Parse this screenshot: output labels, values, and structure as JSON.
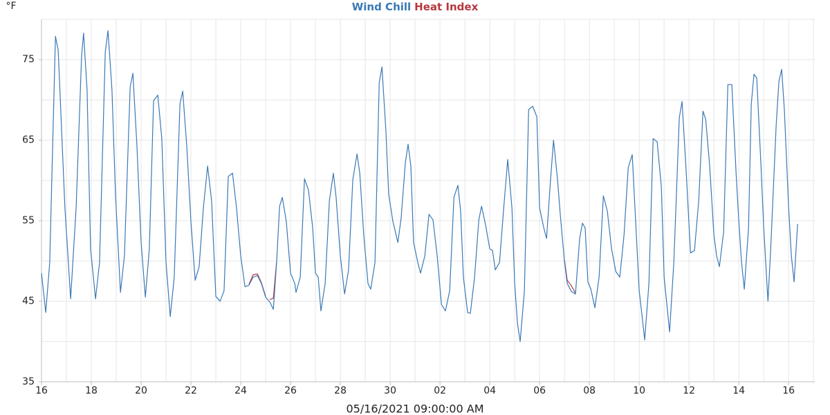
{
  "chart_data": {
    "type": "line",
    "y_label": "°F",
    "x_label": "05/16/2021 09:00:00 AM",
    "xlim": [
      0,
      31.05
    ],
    "ylim": [
      35,
      80
    ],
    "xticks": [
      {
        "value": 0,
        "label": "16"
      },
      {
        "value": 2,
        "label": "18"
      },
      {
        "value": 4,
        "label": "20"
      },
      {
        "value": 6,
        "label": "22"
      },
      {
        "value": 8,
        "label": "24"
      },
      {
        "value": 10,
        "label": "26"
      },
      {
        "value": 12,
        "label": "28"
      },
      {
        "value": 14,
        "label": "30"
      },
      {
        "value": 16,
        "label": "02"
      },
      {
        "value": 18,
        "label": "04"
      },
      {
        "value": 20,
        "label": "06"
      },
      {
        "value": 22,
        "label": "08"
      },
      {
        "value": 24,
        "label": "10"
      },
      {
        "value": 26,
        "label": "12"
      },
      {
        "value": 28,
        "label": "14"
      },
      {
        "value": 30,
        "label": "16"
      }
    ],
    "yticks": [
      35,
      45,
      55,
      65,
      75
    ],
    "x_gridlines": [
      1,
      2,
      3,
      4,
      5,
      6,
      7,
      8,
      9,
      10,
      11,
      12,
      13,
      14,
      15,
      16,
      17,
      18,
      19,
      20,
      21,
      22,
      23,
      24,
      25,
      26,
      27,
      28,
      29,
      30,
      31
    ],
    "y_gridlines": [
      40,
      45,
      50,
      55,
      60,
      65,
      70,
      75,
      80
    ],
    "grid": true,
    "series": [
      {
        "name": "Heat Index",
        "color": "#b5383f",
        "x": [
          8.33,
          8.5,
          8.67,
          8.83,
          9.0,
          9.1,
          9.17,
          9.31,
          9.44,
          15,
          21.0,
          21.11,
          21.28,
          21.44
        ],
        "values": [
          47.1,
          48.3,
          48.4,
          47.3,
          45.6,
          null,
          45.2,
          45.4,
          49.9,
          null,
          50.1,
          47.6,
          46.9,
          46.0
        ]
      },
      {
        "name": "Wind Chill",
        "color": "#3a78b5",
        "x": [
          0,
          0.17,
          0.33,
          0.56,
          0.67,
          0.94,
          1.17,
          1.39,
          1.61,
          1.69,
          1.83,
          1.97,
          2.17,
          2.33,
          2.56,
          2.67,
          2.83,
          2.97,
          3.17,
          3.33,
          3.56,
          3.67,
          3.83,
          4.0,
          4.17,
          4.33,
          4.5,
          4.67,
          4.83,
          5.0,
          5.17,
          5.33,
          5.56,
          5.67,
          5.83,
          6.0,
          6.17,
          6.33,
          6.5,
          6.67,
          6.83,
          7.0,
          7.17,
          7.33,
          7.5,
          7.67,
          7.83,
          8.0,
          8.17,
          8.33,
          8.5,
          8.67,
          8.83,
          9.0,
          9.17,
          9.31,
          9.44,
          9.56,
          9.67,
          9.83,
          10.0,
          10.17,
          10.22,
          10.39,
          10.56,
          10.72,
          10.89,
          11.0,
          11.11,
          11.22,
          11.39,
          11.56,
          11.72,
          11.83,
          12.0,
          12.17,
          12.33,
          12.5,
          12.67,
          12.78,
          12.94,
          13.11,
          13.22,
          13.39,
          13.56,
          13.67,
          13.83,
          13.94,
          14.11,
          14.31,
          14.44,
          14.61,
          14.72,
          14.83,
          14.94,
          15.11,
          15.22,
          15.39,
          15.56,
          15.72,
          15.89,
          16.06,
          16.22,
          16.39,
          16.56,
          16.72,
          16.83,
          16.94,
          17.11,
          17.22,
          17.39,
          17.56,
          17.67,
          17.83,
          18.0,
          18.11,
          18.22,
          18.39,
          18.56,
          18.72,
          18.89,
          19.0,
          19.11,
          19.22,
          19.39,
          19.56,
          19.72,
          19.89,
          20.0,
          20.17,
          20.28,
          20.44,
          20.56,
          20.72,
          20.83,
          21.0,
          21.11,
          21.28,
          21.44,
          21.61,
          21.72,
          21.83,
          21.94,
          22.06,
          22.22,
          22.39,
          22.56,
          22.72,
          22.89,
          23.06,
          23.22,
          23.39,
          23.56,
          23.72,
          23.83,
          24.0,
          24.11,
          24.22,
          24.39,
          24.56,
          24.72,
          24.89,
          25.0,
          25.11,
          25.22,
          25.39,
          25.61,
          25.72,
          25.89,
          26.06,
          26.22,
          26.39,
          26.56,
          26.67,
          26.83,
          27.0,
          27.11,
          27.22,
          27.39,
          27.56,
          27.72,
          27.89,
          28.0,
          28.11,
          28.22,
          28.39,
          28.5,
          28.61,
          28.72,
          28.89,
          29.0,
          29.17,
          29.28,
          29.5,
          29.61,
          29.72,
          29.83,
          30.0,
          30.11,
          30.22,
          30.36
        ],
        "values": [
          48.5,
          43.6,
          49.8,
          77.9,
          76.2,
          56.6,
          45.3,
          56.6,
          75.5,
          78.3,
          71.2,
          51.5,
          45.3,
          49.8,
          75.9,
          78.6,
          71.2,
          58.3,
          46.1,
          50.6,
          71.6,
          73.3,
          64.4,
          52.3,
          45.5,
          51.5,
          69.9,
          70.6,
          65.2,
          49.8,
          43.1,
          48.0,
          69.5,
          71.1,
          64.4,
          54.9,
          47.6,
          49.3,
          56.6,
          61.8,
          57.5,
          45.6,
          45.0,
          46.3,
          60.5,
          60.9,
          56.6,
          50.6,
          46.8,
          47.0,
          48.0,
          48.2,
          47.2,
          45.5,
          44.9,
          44.0,
          49.8,
          56.8,
          57.9,
          54.9,
          48.5,
          47.2,
          46.1,
          48.0,
          60.2,
          58.8,
          54.1,
          48.5,
          48.0,
          43.8,
          47.2,
          57.5,
          60.9,
          57.9,
          50.6,
          45.9,
          48.9,
          60.1,
          63.3,
          60.9,
          53.2,
          47.2,
          46.5,
          49.8,
          72.1,
          74.1,
          66.1,
          58.3,
          54.9,
          52.3,
          55.3,
          62.2,
          64.5,
          61.8,
          52.3,
          49.8,
          48.5,
          50.6,
          55.8,
          55.1,
          50.6,
          44.6,
          43.8,
          46.3,
          57.9,
          59.4,
          56.2,
          48.0,
          43.6,
          43.5,
          48.0,
          55.1,
          56.8,
          54.5,
          51.5,
          51.3,
          48.9,
          49.8,
          56.6,
          62.6,
          56.6,
          47.2,
          42.3,
          40.0,
          46.3,
          68.8,
          69.2,
          67.9,
          56.6,
          54.1,
          52.8,
          60.1,
          65.0,
          60.1,
          55.8,
          49.9,
          47.2,
          46.2,
          45.9,
          52.8,
          54.7,
          54.1,
          47.4,
          46.5,
          44.2,
          48.0,
          58.1,
          56.2,
          51.5,
          48.7,
          48.0,
          53.2,
          61.6,
          63.2,
          56.6,
          46.3,
          43.3,
          40.2,
          47.2,
          65.2,
          64.8,
          59.2,
          48.0,
          44.6,
          41.2,
          49.8,
          67.8,
          69.8,
          60.9,
          51.0,
          51.3,
          57.5,
          68.6,
          67.6,
          61.8,
          53.2,
          50.6,
          49.3,
          53.6,
          71.9,
          71.9,
          60.9,
          54.9,
          49.8,
          46.5,
          54.1,
          69.5,
          73.2,
          72.7,
          61.8,
          54.1,
          45.0,
          51.5,
          66.9,
          72.3,
          73.8,
          68.7,
          56.6,
          50.6,
          47.4,
          54.6
        ]
      }
    ]
  }
}
